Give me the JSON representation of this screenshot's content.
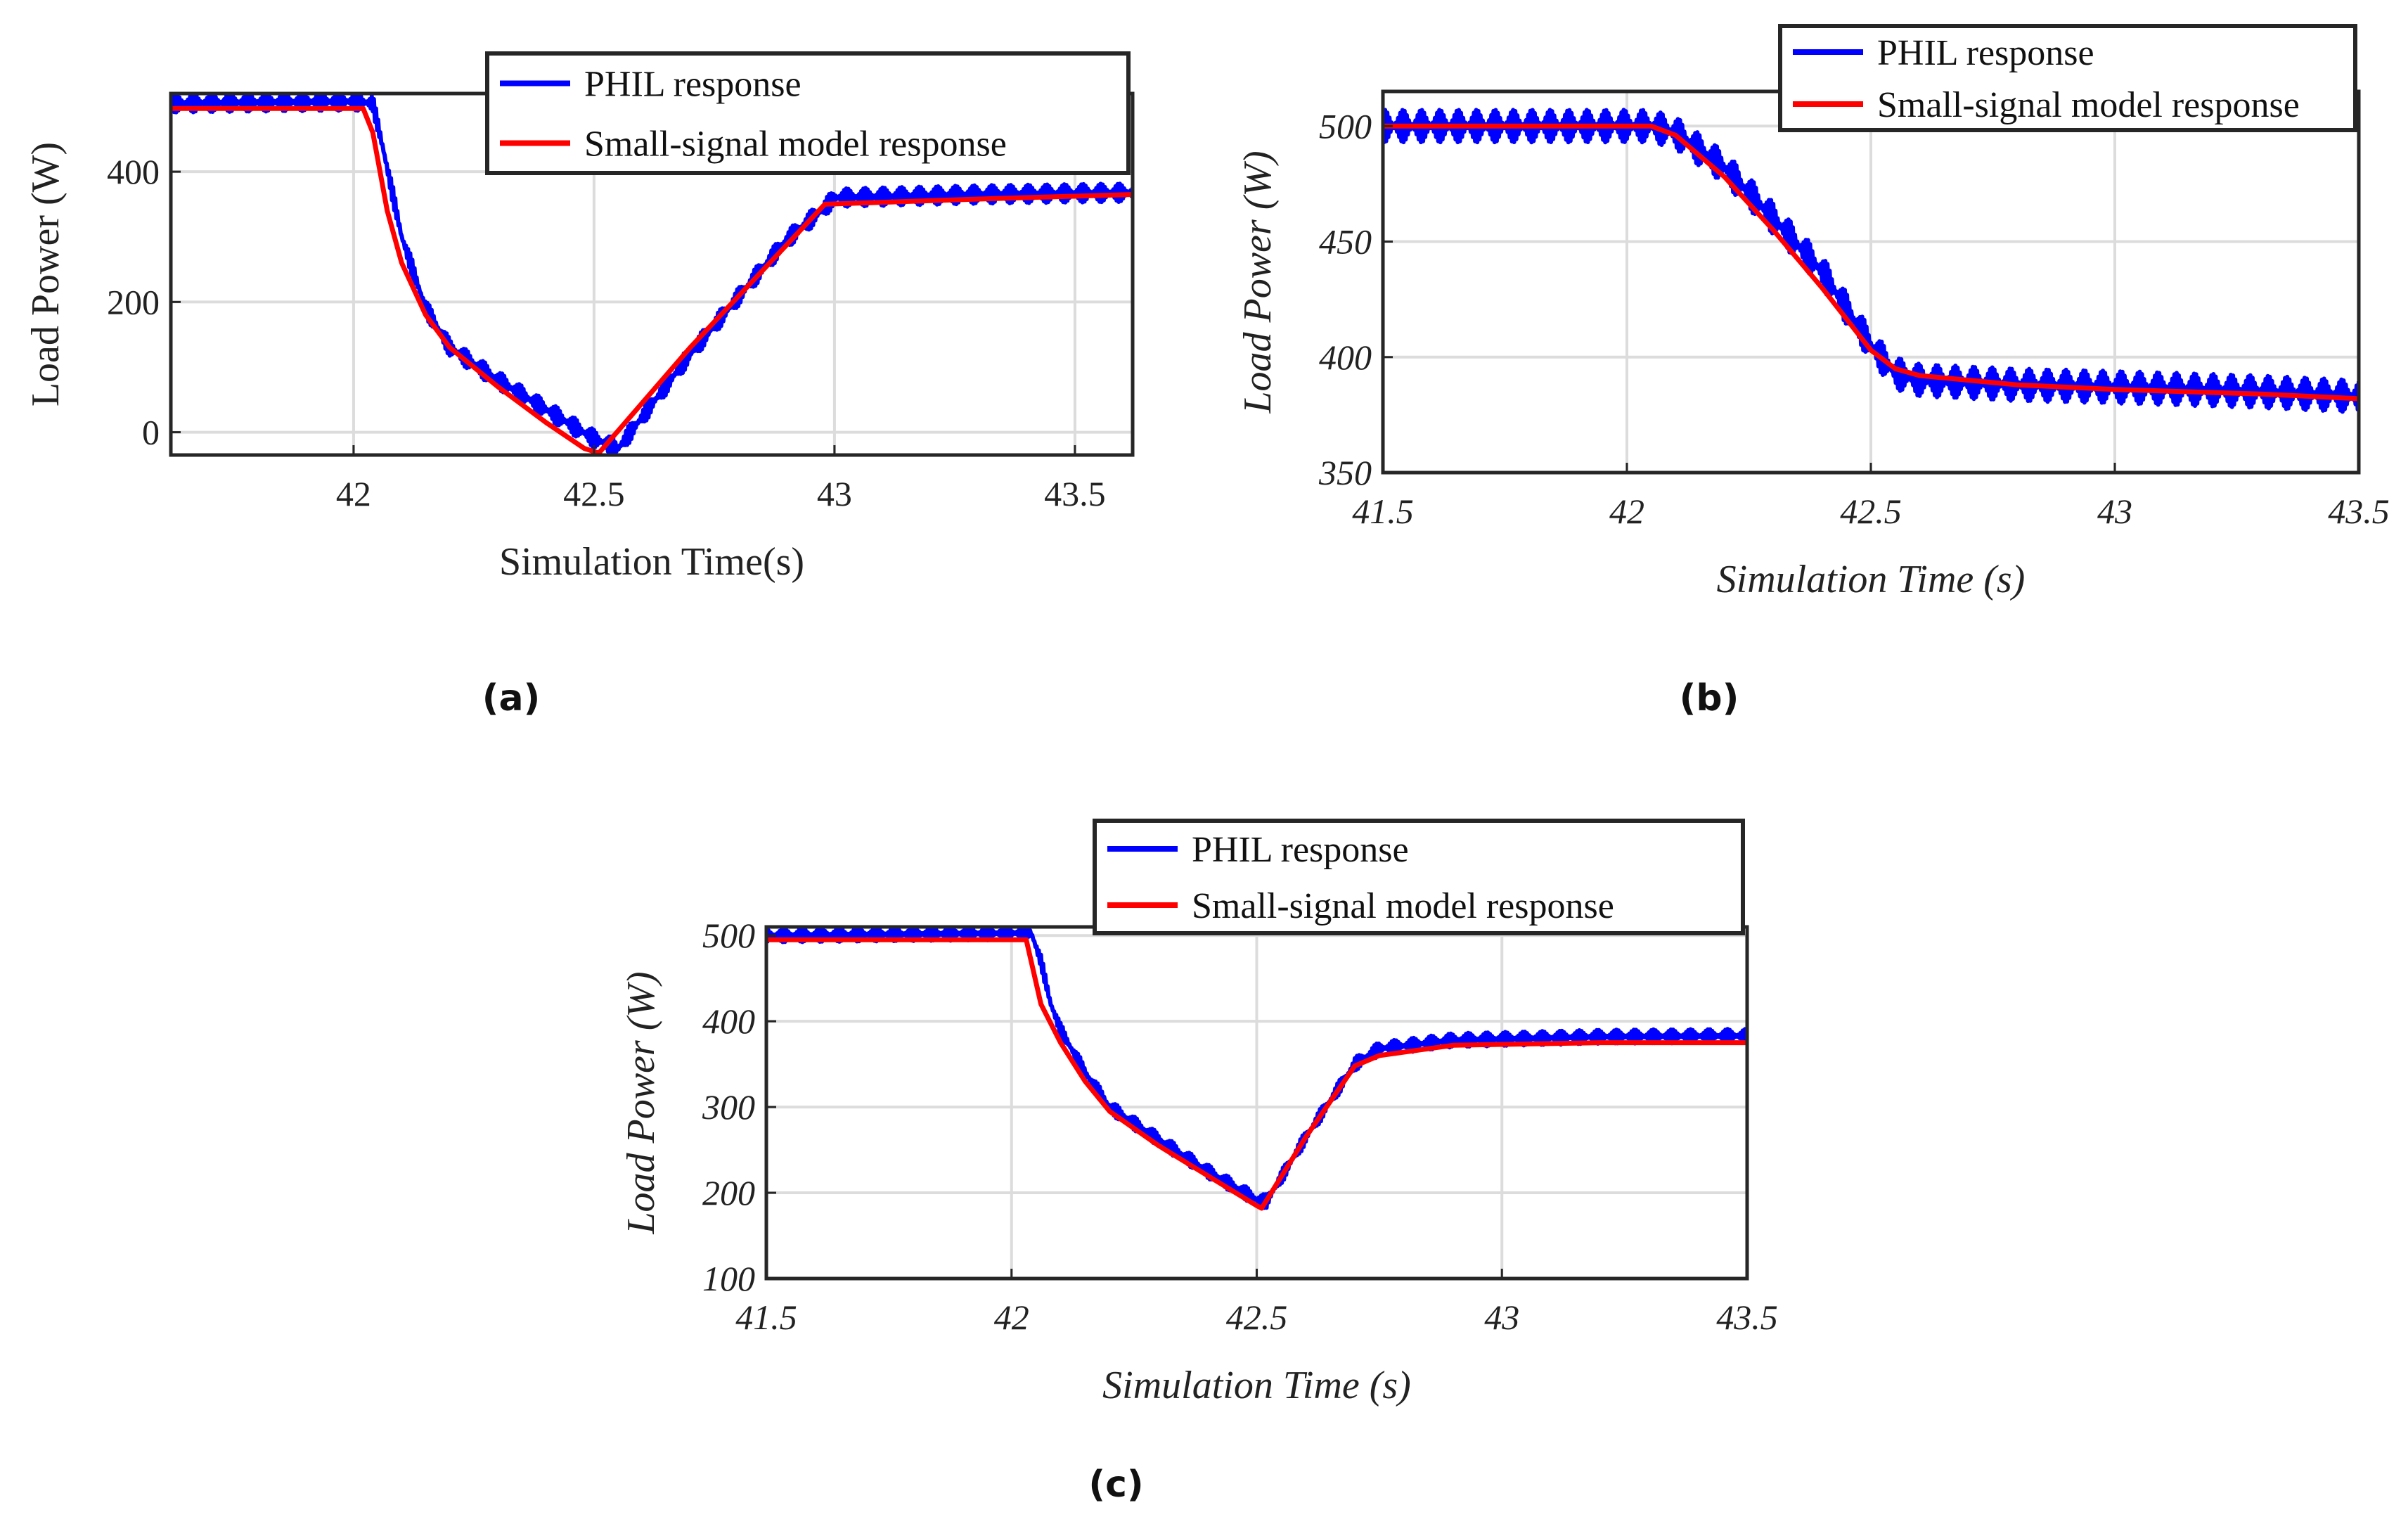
{
  "colors": {
    "phil": "#0000ff",
    "model": "#ff0000",
    "grid": "#dcdcdc",
    "frame": "#262626"
  },
  "chart_data": [
    {
      "id": "a",
      "type": "line",
      "caption": "(a)",
      "xlabel": "Simulation Time(s)",
      "ylabel": "Load Power (W)",
      "italic_labels": false,
      "xlim": [
        41.62,
        43.62
      ],
      "ylim": [
        -35,
        520
      ],
      "xticks": [
        42,
        42.5,
        43,
        43.5
      ],
      "xtick_labels": [
        "42",
        "42.5",
        "43",
        "43.5"
      ],
      "yticks": [
        0,
        200,
        400
      ],
      "ytick_labels": [
        "0",
        "200",
        "400"
      ],
      "legend": {
        "position": "top-right",
        "entries": [
          "PHIL response",
          "Small-signal model response"
        ]
      },
      "series": [
        {
          "name": "PHIL response",
          "ripple": 14,
          "x": [
            41.62,
            42.0,
            42.04,
            42.06,
            42.08,
            42.1,
            42.15,
            42.2,
            42.3,
            42.4,
            42.5,
            42.55,
            42.7,
            42.9,
            42.98,
            43.0,
            43.3,
            43.62
          ],
          "y": [
            505,
            508,
            505,
            440,
            370,
            300,
            190,
            130,
            80,
            35,
            -10,
            -25,
            120,
            295,
            345,
            360,
            365,
            368
          ]
        },
        {
          "name": "Small-signal model response",
          "x": [
            41.62,
            42.02,
            42.04,
            42.07,
            42.1,
            42.15,
            42.2,
            42.3,
            42.4,
            42.48,
            42.51,
            42.7,
            42.98,
            43.3,
            43.62
          ],
          "y": [
            497,
            497,
            460,
            340,
            260,
            180,
            130,
            70,
            15,
            -25,
            -32,
            130,
            350,
            358,
            365
          ]
        }
      ]
    },
    {
      "id": "b",
      "type": "line",
      "caption": "(b)",
      "xlabel": "Simulation Time (s)",
      "ylabel": "Load Power (W)",
      "italic_labels": true,
      "xlim": [
        41.5,
        43.5
      ],
      "ylim": [
        350,
        515
      ],
      "xticks": [
        41.5,
        42,
        42.5,
        43,
        43.5
      ],
      "xtick_labels": [
        "41.5",
        "42",
        "42.5",
        "43",
        "43.5"
      ],
      "yticks": [
        350,
        400,
        450,
        500
      ],
      "ytick_labels": [
        "350",
        "400",
        "450",
        "500"
      ],
      "legend": {
        "position": "top-right",
        "entries": [
          "PHIL response",
          "Small-signal model response"
        ]
      },
      "series": [
        {
          "name": "PHIL response",
          "ripple": 7,
          "x": [
            41.5,
            42.05,
            42.1,
            42.2,
            42.3,
            42.4,
            42.5,
            42.55,
            42.6,
            42.8,
            43.0,
            43.3,
            43.5
          ],
          "y": [
            500,
            500,
            497,
            482,
            460,
            437,
            405,
            393,
            390,
            388,
            387,
            385,
            383
          ]
        },
        {
          "name": "Small-signal model response",
          "x": [
            41.5,
            42.05,
            42.1,
            42.2,
            42.3,
            42.4,
            42.5,
            42.55,
            42.6,
            42.8,
            43.0,
            43.3,
            43.5
          ],
          "y": [
            500,
            500,
            496,
            478,
            455,
            430,
            403,
            395,
            392,
            388,
            386,
            384,
            382
          ]
        }
      ]
    },
    {
      "id": "c",
      "type": "line",
      "caption": "(c)",
      "xlabel": "Simulation Time (s)",
      "ylabel": "Load Power (W)",
      "italic_labels": true,
      "xlim": [
        41.5,
        43.5
      ],
      "ylim": [
        100,
        510
      ],
      "xticks": [
        41.5,
        42,
        42.5,
        43,
        43.5
      ],
      "xtick_labels": [
        "41.5",
        "42",
        "42.5",
        "43",
        "43.5"
      ],
      "yticks": [
        100,
        200,
        300,
        400,
        500
      ],
      "ytick_labels": [
        "100",
        "200",
        "300",
        "400",
        "500"
      ],
      "legend": {
        "position": "top-right",
        "entries": [
          "PHIL response",
          "Small-signal model response"
        ]
      },
      "series": [
        {
          "name": "PHIL response",
          "ripple": 8,
          "x": [
            41.5,
            42.04,
            42.06,
            42.08,
            42.1,
            42.15,
            42.2,
            42.3,
            42.4,
            42.5,
            42.52,
            42.6,
            42.7,
            42.75,
            42.9,
            43.2,
            43.5
          ],
          "y": [
            500,
            503,
            470,
            420,
            390,
            340,
            300,
            262,
            225,
            192,
            190,
            265,
            350,
            368,
            378,
            382,
            383
          ]
        },
        {
          "name": "Small-signal model response",
          "x": [
            41.5,
            42.03,
            42.06,
            42.1,
            42.15,
            42.2,
            42.3,
            42.4,
            42.5,
            42.51,
            42.6,
            42.7,
            42.75,
            42.9,
            43.2,
            43.5
          ],
          "y": [
            495,
            495,
            420,
            375,
            330,
            295,
            255,
            220,
            185,
            182,
            265,
            348,
            360,
            372,
            375,
            375
          ]
        }
      ]
    }
  ]
}
